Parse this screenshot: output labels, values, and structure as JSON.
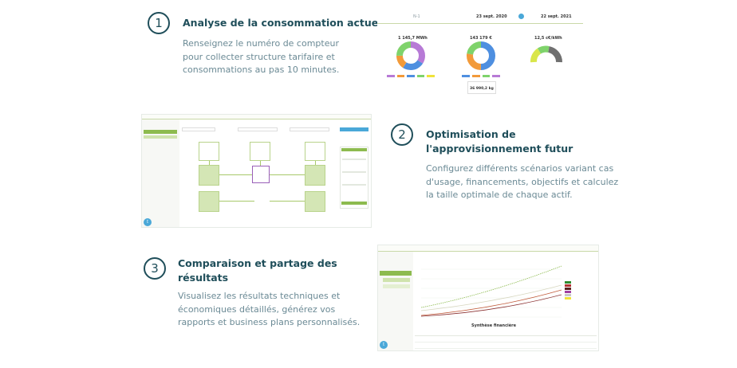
{
  "steps": [
    {
      "number": "1",
      "title": "Analyse de la consommation actuelle",
      "desc_lines": [
        "Renseignez le numéro de compteur",
        "pour collecter structure tarifaire et",
        "consommations au pas 10 minutes."
      ]
    },
    {
      "number": "2",
      "title_lines": [
        "Optimisation de",
        "l'approvisionnement futur"
      ],
      "desc_lines": [
        "Configurez différents scénarios variant cas",
        "d'usage, financements, objectifs et calculez",
        "la taille optimale de chaque actif."
      ]
    },
    {
      "number": "3",
      "title_lines": [
        "Comparaison et partage des",
        "résultats"
      ],
      "desc_lines": [
        "Visualisez les résultats techniques et",
        "économiques détaillés, générez vos",
        "rapports et business plans personnalisés."
      ]
    }
  ],
  "shot1": {
    "period_label": "N-1",
    "date_start": "23 sept. 2020",
    "date_end": "22 sept. 2021",
    "kpis": [
      "1 145,7 MWh",
      "143 179 €",
      "12,5 c€/kWh"
    ],
    "co2": "36 990,2 kg",
    "colors": {
      "purple": "#b77ad6",
      "blue": "#4e8fe0",
      "orange": "#f29a3a",
      "green": "#7fd36b",
      "gray": "#707070",
      "yellow": "#f0e33a"
    }
  },
  "shot3": {
    "chart_title": "Synthèse financière"
  }
}
